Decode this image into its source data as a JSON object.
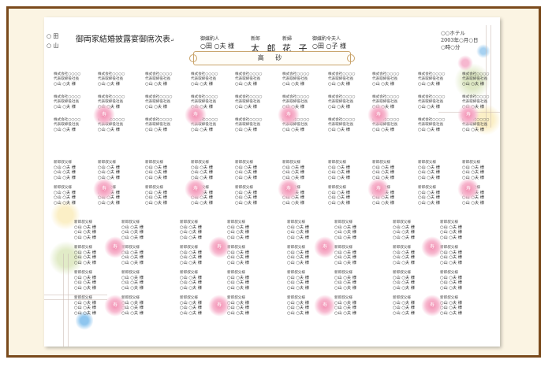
{
  "page": {
    "title": "御両家結婚披露宴御席次表",
    "title_suffix": "↵",
    "family_left": [
      "○ 田",
      "○ 山"
    ],
    "go_baishakunin_label": "御媒酌人",
    "go_baishakunin_name": "○田 ○夫 様",
    "groom_label": "新郎",
    "groom_name": "太 郎",
    "bride_label": "新婦",
    "bride_name": "花 子",
    "baishakunin_wife_label": "御媒酌令夫人",
    "baishakunin_wife_name": "○田 ○子 様",
    "date_lines": [
      "○○ホテル",
      "2003年○月○日",
      "○時○分"
    ],
    "takasago": "高 砂"
  },
  "guest_texts": {
    "company": "株式会社○○○○",
    "title": "代表取締役社長",
    "name": "○山 ○夫 様",
    "relation": "新郎叔父様",
    "kotobuki": "寿"
  }
}
